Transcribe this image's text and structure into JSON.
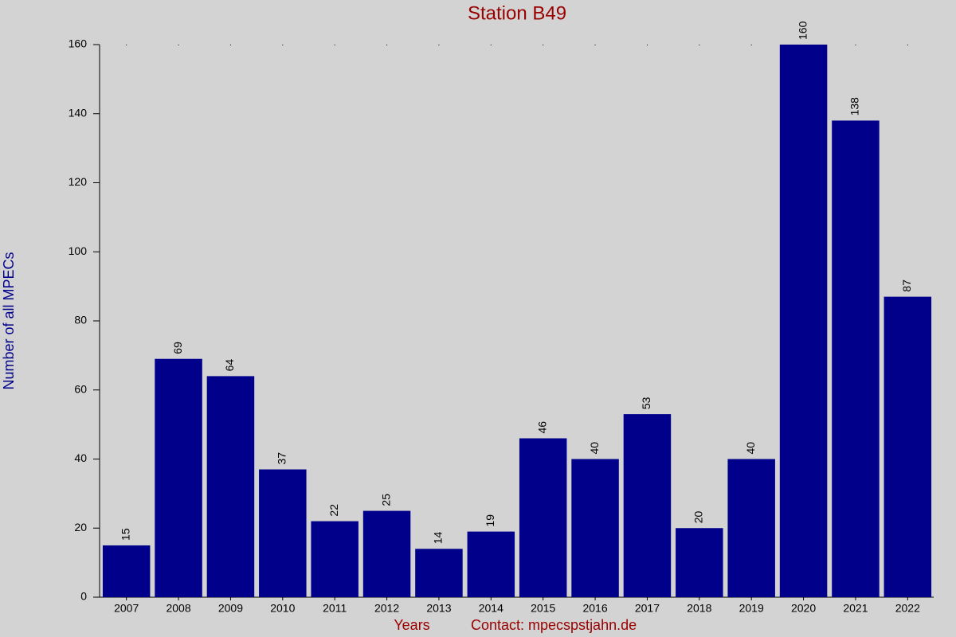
{
  "chart_data": {
    "type": "bar",
    "title": "Station B49",
    "x_label": "Years",
    "contact": "Contact: mpecspstjahn.de",
    "y_label": "Number of all MPECs",
    "categories": [
      "2007",
      "2008",
      "2009",
      "2010",
      "2011",
      "2012",
      "2013",
      "2014",
      "2015",
      "2016",
      "2017",
      "2018",
      "2019",
      "2020",
      "2021",
      "2022"
    ],
    "values": [
      15,
      69,
      64,
      37,
      22,
      25,
      14,
      19,
      46,
      40,
      53,
      20,
      40,
      160,
      138,
      87
    ],
    "color": "#00008b",
    "ylim": [
      0,
      160
    ],
    "yticks": [
      0,
      20,
      40,
      60,
      80,
      100,
      120,
      140,
      160
    ],
    "grid": false
  }
}
